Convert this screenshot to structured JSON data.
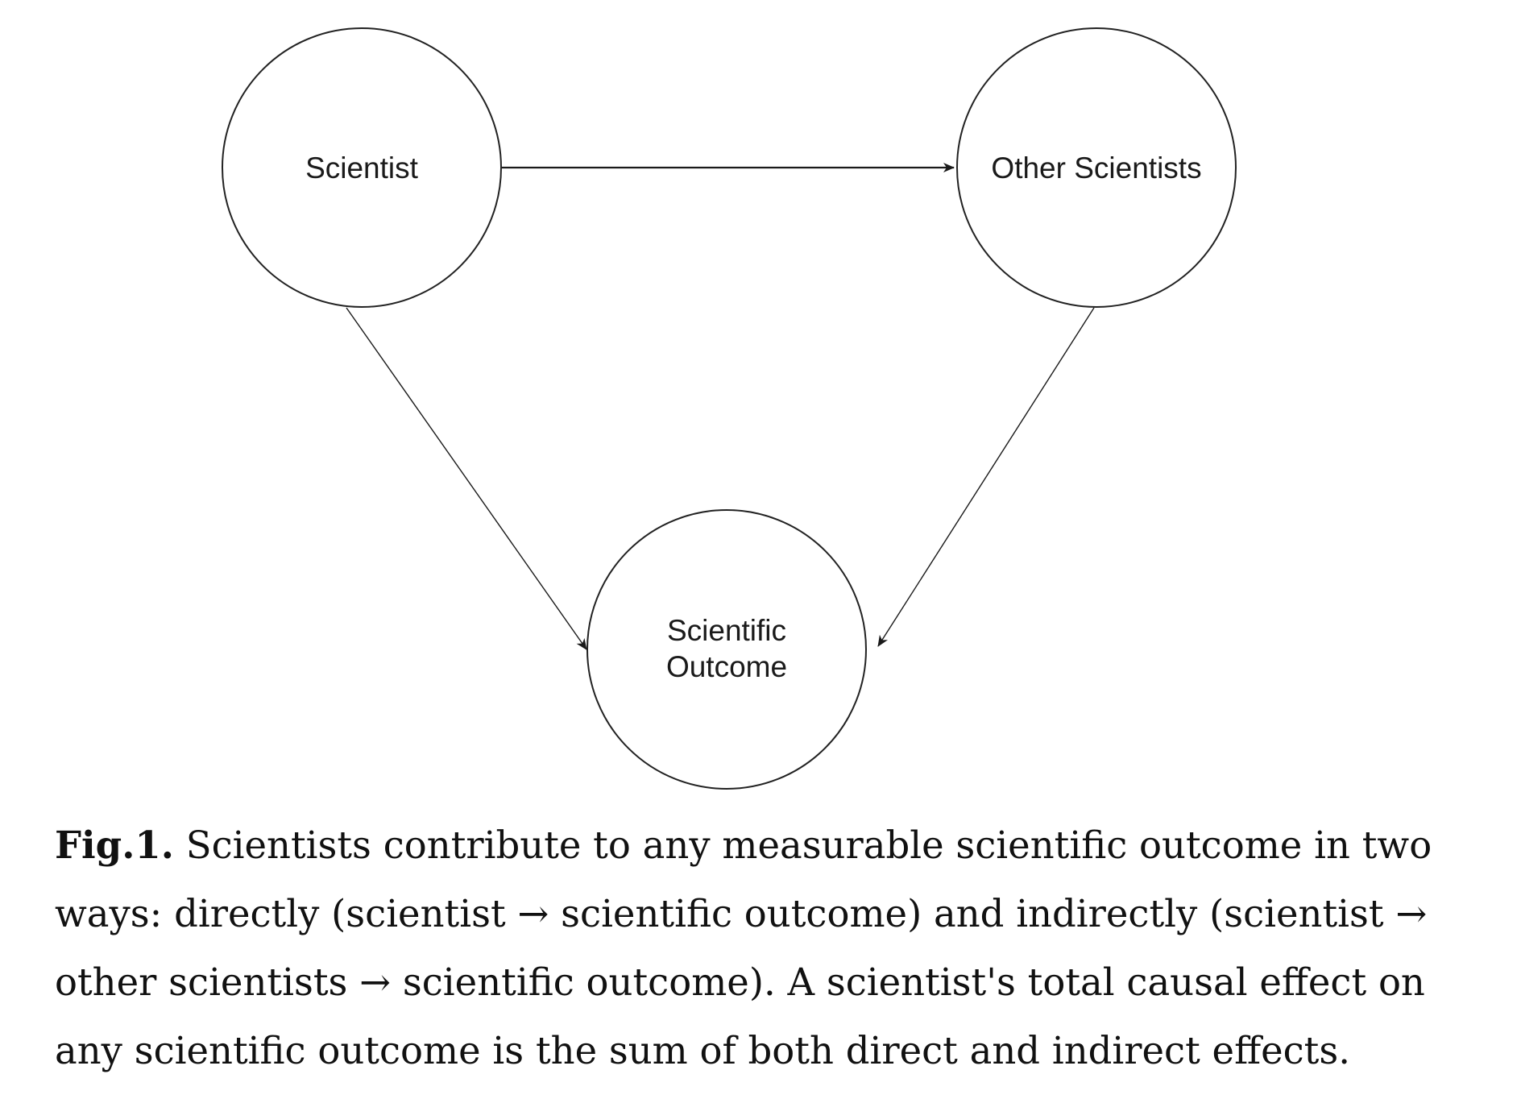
{
  "diagram": {
    "nodes": [
      {
        "id": "scientist",
        "lines": [
          "Scientist"
        ]
      },
      {
        "id": "other-scientists",
        "lines": [
          "Other Scientists"
        ]
      },
      {
        "id": "scientific-outcome",
        "lines": [
          "Scientific",
          "Outcome"
        ]
      }
    ],
    "edges": [
      {
        "from": "scientist",
        "to": "other-scientists"
      },
      {
        "from": "scientist",
        "to": "scientific-outcome"
      },
      {
        "from": "other-scientists",
        "to": "scientific-outcome"
      }
    ]
  },
  "caption": {
    "label": "Fig.1.",
    "text": " Scientists contribute to any measurable scientific outcome in two ways: directly (scientist → scientific outcome) and indirectly (scientist → other scientists → scientific outcome). A scientist's total causal effect on any scientific outcome is the sum of both direct and indirect effects."
  }
}
